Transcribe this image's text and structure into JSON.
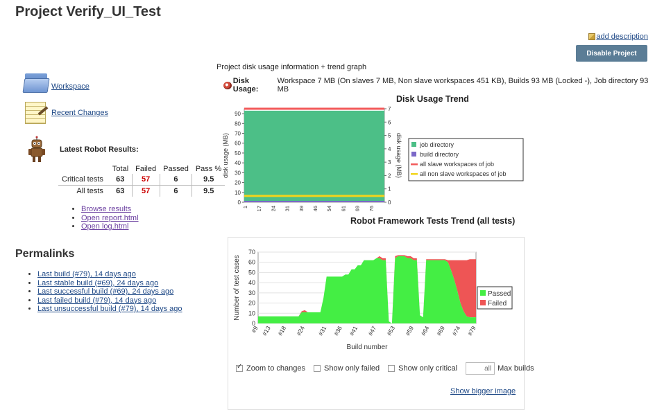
{
  "page": {
    "title": "Project Verify_UI_Test",
    "add_description": "add description",
    "disable_button": "Disable Project"
  },
  "tasks": [
    {
      "label": "Workspace",
      "icon": "folder-icon"
    },
    {
      "label": "Recent Changes",
      "icon": "notepad-icon"
    }
  ],
  "robot": {
    "title": "Latest Robot Results:",
    "headers": [
      "Total",
      "Failed",
      "Passed",
      "Pass %"
    ],
    "rows": [
      {
        "label": "Critical tests",
        "total": "63",
        "failed": "57",
        "passed": "6",
        "pass_pct": "9.5"
      },
      {
        "label": "All tests",
        "total": "63",
        "failed": "57",
        "passed": "6",
        "pass_pct": "9.5"
      }
    ],
    "links": [
      "Browse results",
      "Open report.html",
      "Open log.html"
    ]
  },
  "permalinks": {
    "title": "Permalinks",
    "items": [
      "Last build (#79), 14 days ago",
      "Last stable build (#69), 24 days ago",
      "Last successful build (#69), 24 days ago",
      "Last failed build (#79), 14 days ago",
      "Last unsuccessful build (#79), 14 days ago"
    ]
  },
  "disk": {
    "info": "Project disk usage information + trend graph",
    "label": "Disk Usage:",
    "value": "Workspace 7 MB (On slaves 7 MB, Non slave workspaces 451 KB), Builds 93 MB (Locked -), Job directory 93 MB"
  },
  "chart_data": [
    {
      "type": "area",
      "title": "Disk Usage Trend",
      "ylabel": "disk usage (MB)",
      "y2label": "disk usage (MB)",
      "ylim": [
        0,
        95
      ],
      "yticks": [
        0,
        10,
        20,
        30,
        40,
        50,
        60,
        70,
        80,
        90
      ],
      "y2lim": [
        0,
        7
      ],
      "y2ticks": [
        0,
        1,
        2,
        3,
        4,
        5,
        6,
        7
      ],
      "x_ticks": [
        "1",
        "17",
        "24",
        "31",
        "39",
        "46",
        "54",
        "61",
        "69",
        "76"
      ],
      "legend": [
        "job directory",
        "build directory",
        "all slave workspaces of job",
        "all non slave workspaces of job"
      ],
      "legend_colors": [
        "#4cbf87",
        "#7b68c8",
        "#f25a5a",
        "#f2d41b"
      ],
      "series": [
        {
          "name": "job directory",
          "values": [
            93,
            93,
            93,
            93,
            93,
            93,
            93,
            93,
            93,
            93
          ]
        },
        {
          "name": "all slave workspaces of job",
          "values": [
            7,
            7,
            7,
            7,
            7,
            7,
            7,
            7,
            7,
            7
          ]
        },
        {
          "name": "all non slave workspaces of job",
          "values": [
            0.45,
            0.45,
            0.45,
            0.45,
            0.45,
            0.45,
            0.45,
            0.45,
            0.45,
            0.45
          ]
        }
      ]
    },
    {
      "type": "area",
      "title": "Robot Framework Tests Trend (all tests)",
      "xlabel": "Build number",
      "ylabel": "Number of test cases",
      "ylim": [
        0,
        70
      ],
      "yticks": [
        0,
        10,
        20,
        30,
        40,
        50,
        60,
        70
      ],
      "x_ticks": [
        "#9",
        "#13",
        "#18",
        "#24",
        "#31",
        "#36",
        "#41",
        "#47",
        "#53",
        "#59",
        "#64",
        "#69",
        "#74",
        "#79"
      ],
      "legend": [
        "Passed",
        "Failed"
      ],
      "legend_colors": [
        "#44ee44",
        "#ee5555"
      ],
      "x": [
        9,
        10,
        11,
        12,
        13,
        14,
        15,
        16,
        17,
        18,
        19,
        20,
        21,
        22,
        23,
        24,
        25,
        26,
        27,
        28,
        29,
        30,
        31,
        32,
        33,
        34,
        35,
        36,
        37,
        38,
        39,
        40,
        41,
        42,
        43,
        44,
        45,
        46,
        47,
        48,
        49,
        50,
        51,
        52,
        53,
        54,
        55,
        56,
        57,
        58,
        59,
        60,
        61,
        62,
        63,
        64,
        65,
        66,
        67,
        68,
        69,
        70,
        71,
        72,
        73,
        74,
        75,
        76,
        77,
        78,
        79
      ],
      "series": [
        {
          "name": "Passed",
          "values": [
            7,
            7,
            7,
            7,
            7,
            7,
            7,
            7,
            7,
            7,
            7,
            7,
            7,
            7,
            11,
            11,
            11,
            11,
            11,
            11,
            11,
            25,
            46,
            46,
            46,
            46,
            46,
            46,
            48,
            48,
            53,
            53,
            57,
            57,
            62,
            62,
            62,
            62,
            64,
            64,
            62,
            62,
            2,
            0,
            64,
            66,
            66,
            66,
            64,
            64,
            62,
            62,
            8,
            6,
            62,
            62,
            62,
            62,
            62,
            62,
            62,
            60,
            52,
            43,
            32,
            20,
            12,
            7,
            6,
            6,
            6
          ]
        },
        {
          "name": "Failed",
          "values": [
            0,
            0,
            0,
            0,
            0,
            0,
            0,
            0,
            0,
            0,
            0,
            0,
            0,
            0,
            1,
            2,
            0,
            0,
            0,
            0,
            0,
            0,
            0,
            0,
            0,
            0,
            0,
            0,
            0,
            0,
            0,
            0,
            0,
            0,
            0,
            0,
            0,
            0,
            0,
            2,
            2,
            2,
            0,
            0,
            2,
            1,
            1,
            1,
            2,
            2,
            2,
            2,
            0,
            0,
            1,
            1,
            1,
            1,
            1,
            1,
            1,
            2,
            10,
            19,
            30,
            42,
            50,
            55,
            57,
            57,
            57
          ]
        }
      ]
    }
  ],
  "controls": {
    "zoom": "Zoom to changes",
    "only_failed": "Show only failed",
    "only_critical": "Show only critical",
    "max_builds_placeholder": "all",
    "max_builds": "Max builds"
  },
  "bigger_image": "Show bigger image"
}
